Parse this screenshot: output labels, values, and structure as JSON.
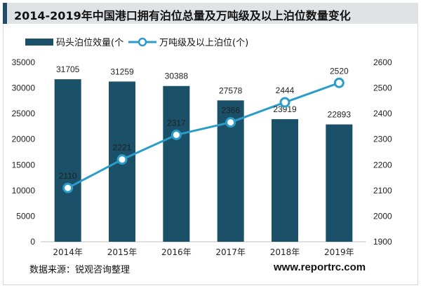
{
  "chart_data": {
    "type": "bar+line",
    "title": "2014-2019年中国港口拥有泊位总量及万吨级及以上泊位数量变化",
    "categories": [
      "2014年",
      "2015年",
      "2016年",
      "2017年",
      "2018年",
      "2019年"
    ],
    "series": [
      {
        "name": "码头泊位效量(个",
        "type": "bar",
        "axis": "left",
        "color": "#1a5068",
        "values": [
          31705,
          31259,
          30388,
          27578,
          23919,
          22893
        ]
      },
      {
        "name": "万吨级及以上泊位(个)",
        "type": "line",
        "axis": "right",
        "color": "#2b9cc8",
        "values": [
          2110,
          2221,
          2317,
          2366,
          2444,
          2520
        ]
      }
    ],
    "y_left": {
      "min": 0,
      "max": 35000,
      "step": 5000,
      "ticks": [
        "0",
        "5000",
        "10000",
        "15000",
        "20000",
        "25000",
        "30000",
        "35000"
      ]
    },
    "y_right": {
      "min": 1900,
      "max": 2600,
      "step": 100,
      "ticks": [
        "1900",
        "2000",
        "2100",
        "2200",
        "2300",
        "2400",
        "2500",
        "2600"
      ]
    },
    "grid": false,
    "legend_position": "top-left"
  },
  "footer": {
    "source": "数据来源：锐观咨询整理",
    "website": "www.reportrc.com"
  }
}
